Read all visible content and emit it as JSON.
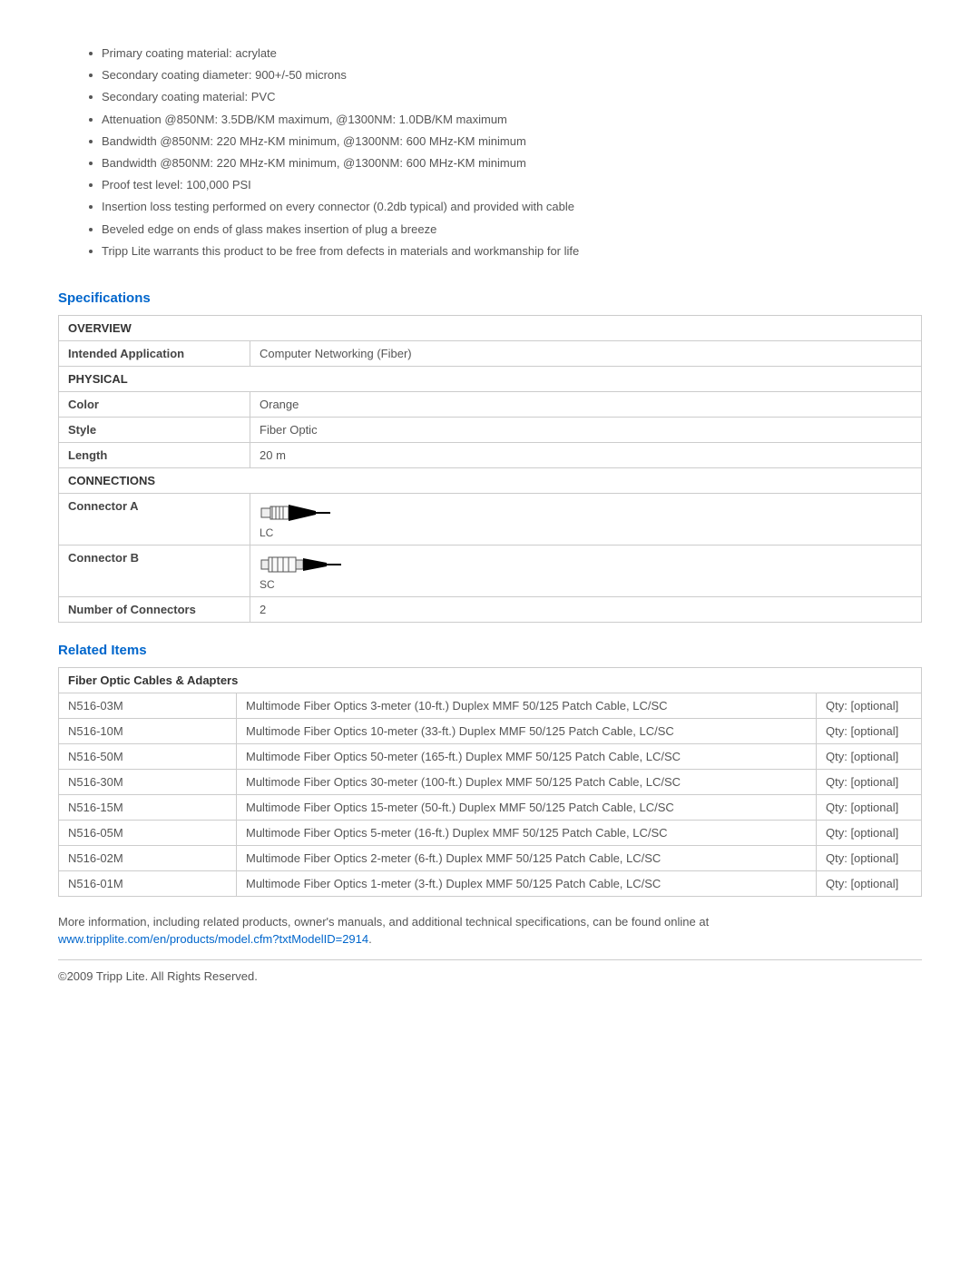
{
  "features": [
    "Primary coating material: acrylate",
    "Secondary coating diameter: 900+/-50 microns",
    "Secondary coating material: PVC",
    "Attenuation @850NM: 3.5DB/KM maximum, @1300NM: 1.0DB/KM maximum",
    "Bandwidth @850NM: 220 MHz-KM minimum, @1300NM: 600 MHz-KM minimum",
    "Bandwidth @850NM: 220 MHz-KM minimum, @1300NM: 600 MHz-KM minimum",
    "Proof test level: 100,000 PSI",
    "Insertion loss testing performed on every connector (0.2db typical) and provided with cable",
    "Beveled edge on ends of glass makes insertion of plug a breeze",
    "Tripp Lite warrants this product to be free from defects in materials and workmanship for life"
  ],
  "specifications": {
    "heading": "Specifications",
    "sections": [
      {
        "title": "OVERVIEW",
        "rows": [
          {
            "label": "Intended Application",
            "value": "Computer Networking (Fiber)",
            "type": "text"
          }
        ]
      },
      {
        "title": "PHYSICAL",
        "rows": [
          {
            "label": "Color",
            "value": "Orange",
            "type": "text"
          },
          {
            "label": "Style",
            "value": "Fiber Optic",
            "type": "text"
          },
          {
            "label": "Length",
            "value": "20 m",
            "type": "text"
          }
        ]
      },
      {
        "title": "CONNECTIONS",
        "rows": [
          {
            "label": "Connector A",
            "value": "LC",
            "type": "connector"
          },
          {
            "label": "Connector B",
            "value": "SC",
            "type": "connector"
          },
          {
            "label": "Number of Connectors",
            "value": "2",
            "type": "text"
          }
        ]
      }
    ]
  },
  "related": {
    "heading": "Related Items",
    "section_title": "Fiber Optic Cables & Adapters",
    "qty_label": "Qty: [optional]",
    "items": [
      {
        "sku": "N516-03M",
        "desc": "Multimode Fiber Optics 3-meter (10-ft.) Duplex MMF 50/125 Patch Cable, LC/SC"
      },
      {
        "sku": "N516-10M",
        "desc": "Multimode Fiber Optics 10-meter (33-ft.) Duplex MMF 50/125 Patch Cable, LC/SC"
      },
      {
        "sku": "N516-50M",
        "desc": "Multimode Fiber Optics 50-meter (165-ft.) Duplex MMF 50/125 Patch Cable, LC/SC"
      },
      {
        "sku": "N516-30M",
        "desc": "Multimode Fiber Optics 30-meter (100-ft.) Duplex MMF 50/125 Patch Cable, LC/SC"
      },
      {
        "sku": "N516-15M",
        "desc": "Multimode Fiber Optics 15-meter (50-ft.) Duplex MMF 50/125 Patch Cable, LC/SC"
      },
      {
        "sku": "N516-05M",
        "desc": "Multimode Fiber Optics 5-meter (16-ft.) Duplex MMF 50/125 Patch Cable, LC/SC"
      },
      {
        "sku": "N516-02M",
        "desc": "Multimode Fiber Optics 2-meter (6-ft.) Duplex MMF 50/125 Patch Cable, LC/SC"
      },
      {
        "sku": "N516-01M",
        "desc": "Multimode Fiber Optics 1-meter (3-ft.) Duplex MMF 50/125 Patch Cable, LC/SC"
      }
    ]
  },
  "more_info_text": "More information, including related products, owner's manuals, and additional technical specifications, can be found online at ",
  "more_info_link_text": "www.tripplite.com/en/products/model.cfm?txtModelID=2914",
  "more_info_period": ".",
  "copyright": "©2009 Tripp Lite.  All Rights Reserved.",
  "colors": {
    "heading": "#0066cc",
    "text": "#555555",
    "border": "#cccccc",
    "link": "#0066cc"
  }
}
